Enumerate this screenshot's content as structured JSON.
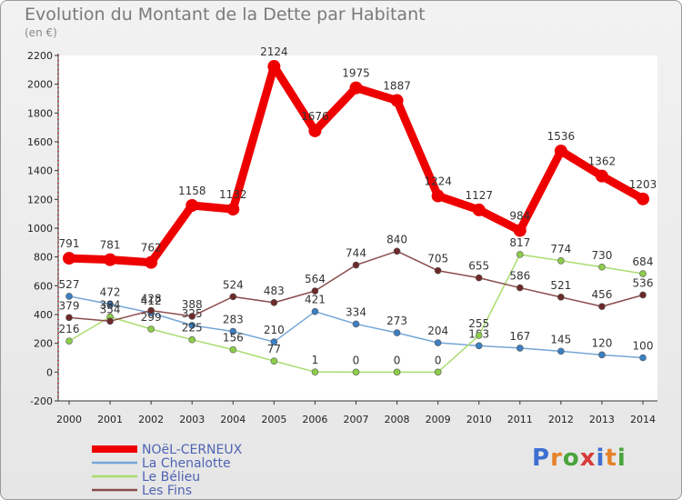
{
  "title": "Evolution du Montant de la Dette par Habitant",
  "subtitle": "(en €)",
  "brand": {
    "text": "Proxiti",
    "letter_colors": [
      "#3c6fd1",
      "#e6832a",
      "#4aa33c",
      "#d73a3a",
      "#3c6fd1",
      "#e6832a",
      "#4aa33c"
    ]
  },
  "chart_data": {
    "type": "line",
    "title": "Evolution du Montant de la Dette par Habitant",
    "subtitle": "(en €)",
    "xlabel": "",
    "ylabel": "",
    "x": [
      "2000",
      "2001",
      "2002",
      "2003",
      "2004",
      "2005",
      "2006",
      "2007",
      "2008",
      "2009",
      "2010",
      "2011",
      "2012",
      "2013",
      "2014"
    ],
    "ylim": [
      -200,
      2200
    ],
    "yticks": [
      -200,
      0,
      200,
      400,
      600,
      800,
      1000,
      1200,
      1400,
      1600,
      1800,
      2000,
      2200
    ],
    "grid": false,
    "legend": "bottom-left",
    "series": [
      {
        "name": "NOëL-CERNEUX",
        "color": "#ee0000",
        "marker": "#ee0000",
        "values": [
          791,
          781,
          762,
          1158,
          1132,
          2124,
          1676,
          1975,
          1887,
          1224,
          1127,
          984,
          1536,
          1362,
          1203
        ]
      },
      {
        "name": "La Chenalotte",
        "color": "#74a6d6",
        "marker": "#3c7fc3",
        "values": [
          527,
          472,
          412,
          325,
          283,
          210,
          421,
          334,
          273,
          204,
          183,
          167,
          145,
          120,
          100
        ]
      },
      {
        "name": "Le Bélieu",
        "color": "#a9dc70",
        "marker": "#8ccd4a",
        "values": [
          216,
          384,
          299,
          225,
          156,
          77,
          1,
          0,
          0,
          0,
          255,
          817,
          774,
          730,
          684
        ]
      },
      {
        "name": "Les Fins",
        "color": "#8a4b4b",
        "marker": "#6d2a2a",
        "values": [
          379,
          354,
          428,
          388,
          524,
          483,
          564,
          744,
          840,
          705,
          655,
          586,
          521,
          456,
          536
        ]
      }
    ]
  }
}
